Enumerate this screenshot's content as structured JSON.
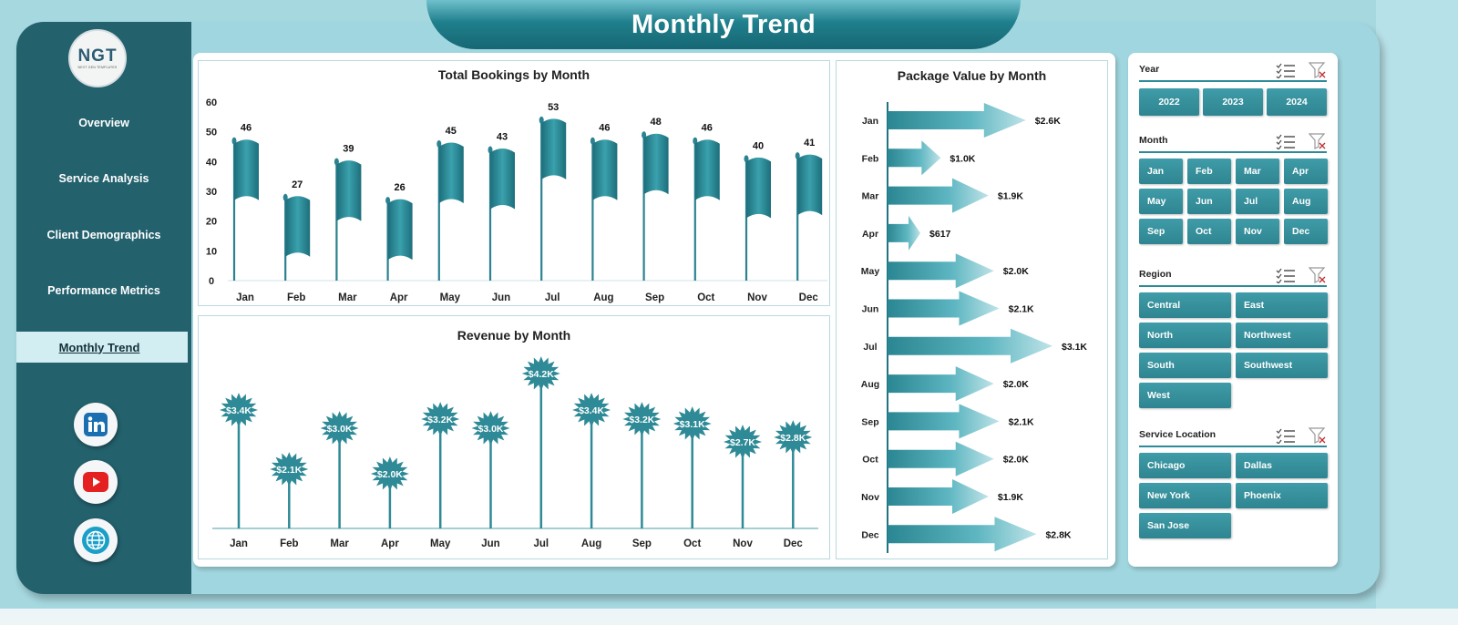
{
  "title": "Monthly Trend",
  "logo": {
    "mark": "NGT",
    "sub": "NEXT GEN TEMPLATES"
  },
  "nav": [
    "Overview",
    "Service Analysis",
    "Client Demographics",
    "Performance Metrics",
    "Monthly Trend"
  ],
  "active_nav": "Monthly Trend",
  "social": [
    "linkedin-icon",
    "youtube-icon",
    "globe-icon"
  ],
  "colors": {
    "teal_dark": "#23616d",
    "accent": "#2e8591",
    "bg": "#a0d6df"
  },
  "chart_data": [
    {
      "type": "bar",
      "title": "Total Bookings by Month",
      "categories": [
        "Jan",
        "Feb",
        "Mar",
        "Apr",
        "May",
        "Jun",
        "Jul",
        "Aug",
        "Sep",
        "Oct",
        "Nov",
        "Dec"
      ],
      "values": [
        46,
        27,
        39,
        26,
        45,
        43,
        53,
        46,
        48,
        46,
        40,
        41
      ],
      "yticks": [
        "0",
        "10",
        "20",
        "30",
        "40",
        "50",
        "60"
      ],
      "ylim": [
        0,
        60
      ]
    },
    {
      "type": "bar",
      "title": "Revenue by Month",
      "categories": [
        "Jan",
        "Feb",
        "Mar",
        "Apr",
        "May",
        "Jun",
        "Jul",
        "Aug",
        "Sep",
        "Oct",
        "Nov",
        "Dec"
      ],
      "values": [
        3.4,
        2.1,
        3.0,
        2.0,
        3.2,
        3.0,
        4.2,
        3.4,
        3.2,
        3.1,
        2.7,
        2.8
      ],
      "labels": [
        "$3.4K",
        "$2.1K",
        "$3.0K",
        "$2.0K",
        "$3.2K",
        "$3.0K",
        "$4.2K",
        "$3.4K",
        "$3.2K",
        "$3.1K",
        "$2.7K",
        "$2.8K"
      ]
    },
    {
      "type": "bar",
      "title": "Package Value by Month",
      "categories": [
        "Jan",
        "Feb",
        "Mar",
        "Apr",
        "May",
        "Jun",
        "Jul",
        "Aug",
        "Sep",
        "Oct",
        "Nov",
        "Dec"
      ],
      "values": [
        2.6,
        1.0,
        1.9,
        0.617,
        2.0,
        2.1,
        3.1,
        2.0,
        2.1,
        2.0,
        1.9,
        2.8
      ],
      "labels": [
        "$2.6K",
        "$1.0K",
        "$1.9K",
        "$617",
        "$2.0K",
        "$2.1K",
        "$3.1K",
        "$2.0K",
        "$2.1K",
        "$2.0K",
        "$1.9K",
        "$2.8K"
      ]
    }
  ],
  "slicers": {
    "year": {
      "title": "Year",
      "items": [
        "2022",
        "2023",
        "2024"
      ]
    },
    "month": {
      "title": "Month",
      "items": [
        "Jan",
        "Feb",
        "Mar",
        "Apr",
        "May",
        "Jun",
        "Jul",
        "Aug",
        "Sep",
        "Oct",
        "Nov",
        "Dec"
      ]
    },
    "region": {
      "title": "Region",
      "items": [
        "Central",
        "East",
        "North",
        "Northwest",
        "South",
        "Southwest",
        "West"
      ]
    },
    "location": {
      "title": "Service Location",
      "items": [
        "Chicago",
        "Dallas",
        "New York",
        "Phoenix",
        "San Jose"
      ]
    }
  }
}
